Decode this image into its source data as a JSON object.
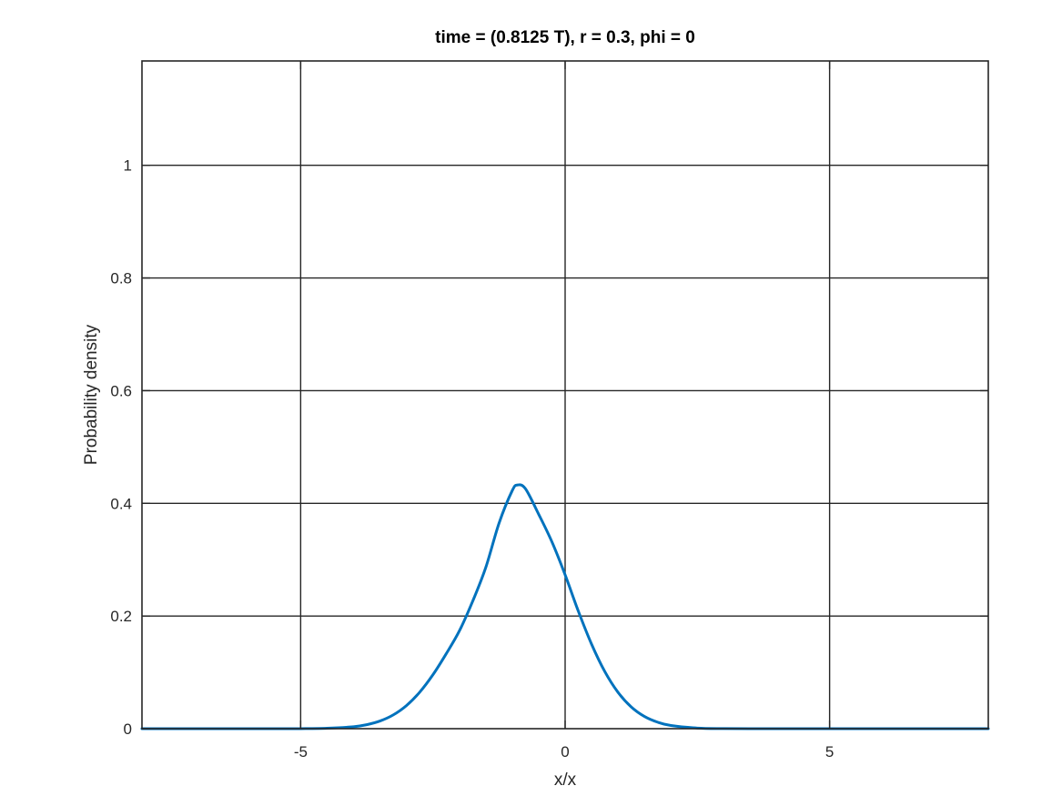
{
  "chart_data": {
    "type": "line",
    "title": "time = (0.8125 T), r = 0.3, phi = 0",
    "xlabel": "x/x",
    "ylabel": "Probability density",
    "xlim": [
      -8,
      8
    ],
    "ylim": [
      0,
      1.1852
    ],
    "grid": true,
    "xticks": [
      -5,
      0,
      5
    ],
    "xtick_labels": [
      "-5",
      "0",
      "5"
    ],
    "yticks": [
      0,
      0.2,
      0.4,
      0.6,
      0.8,
      1
    ],
    "ytick_labels": [
      "0",
      "0.2",
      "0.4",
      "0.6",
      "0.8",
      "1"
    ],
    "series": [
      {
        "color": "#0072bd",
        "x": [
          -8,
          -7.5,
          -7,
          -6.5,
          -6,
          -5.5,
          -5,
          -4.5,
          -4,
          -3.75,
          -3.5,
          -3.25,
          -3,
          -2.75,
          -2.5,
          -2.25,
          -2,
          -1.75,
          -1.5,
          -1.25,
          -1,
          -0.9,
          -0.75,
          -0.5,
          -0.25,
          0,
          0.25,
          0.5,
          0.75,
          1,
          1.25,
          1.5,
          1.75,
          2,
          2.5,
          3,
          3.5,
          4,
          4.5,
          5,
          5.5,
          6,
          6.5,
          7,
          7.5,
          8
        ],
        "y": [
          0,
          0,
          0,
          0,
          0,
          0,
          0.0001,
          0.0008,
          0.0035,
          0.0071,
          0.0136,
          0.0244,
          0.041,
          0.0647,
          0.0956,
          0.1327,
          0.1734,
          0.2257,
          0.2862,
          0.3646,
          0.4225,
          0.4325,
          0.4258,
          0.3806,
          0.3317,
          0.2731,
          0.2085,
          0.15,
          0.1014,
          0.0645,
          0.0386,
          0.0217,
          0.0115,
          0.0056,
          0.0011,
          0.0002,
          0,
          0,
          0,
          0,
          0,
          0,
          0,
          0,
          0,
          0
        ]
      }
    ]
  }
}
